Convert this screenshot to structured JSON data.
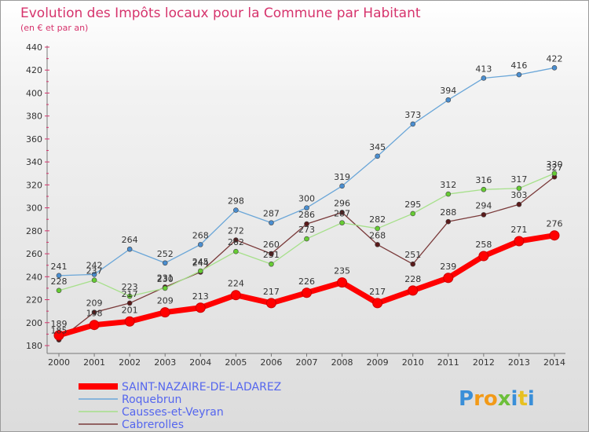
{
  "chart_data": {
    "type": "line",
    "title": "Evolution des Impôts locaux pour la Commune par Habitant",
    "subtitle": "(en € et par an)",
    "x": [
      "2000",
      "2001",
      "2002",
      "2003",
      "2004",
      "2005",
      "2006",
      "2007",
      "2008",
      "2009",
      "2010",
      "2011",
      "2012",
      "2013",
      "2014"
    ],
    "ylim": [
      180,
      440
    ],
    "yticks": [
      180,
      200,
      220,
      240,
      260,
      280,
      300,
      320,
      340,
      360,
      380,
      400,
      420,
      440
    ],
    "grid": false,
    "legend_position": "bottom-left",
    "series": [
      {
        "name": "SAINT-NAZAIRE-DE-LADAREZ",
        "color": "#ff0000",
        "marker": "#ff0000",
        "values": [
          189,
          198,
          201,
          209,
          213,
          224,
          217,
          226,
          235,
          217,
          228,
          239,
          258,
          271,
          276
        ]
      },
      {
        "name": "Roquebrun",
        "color": "#6aa6d8",
        "marker": "#4a8ed0",
        "values": [
          241,
          242,
          264,
          252,
          268,
          298,
          287,
          300,
          319,
          345,
          373,
          394,
          413,
          416,
          422
        ]
      },
      {
        "name": "Causses-et-Veyran",
        "color": "#a6e08a",
        "marker": "#66cc33",
        "values": [
          228,
          237,
          223,
          230,
          245,
          262,
          251,
          273,
          287,
          282,
          295,
          312,
          316,
          317,
          330
        ]
      },
      {
        "name": "Cabrerolles",
        "color": "#7a3a3a",
        "marker": "#5a1a1a",
        "values": [
          185,
          209,
          217,
          231,
          244,
          272,
          260,
          286,
          296,
          268,
          251,
          288,
          294,
          303,
          327
        ]
      }
    ]
  },
  "logo": {
    "text": "Proxiti"
  }
}
